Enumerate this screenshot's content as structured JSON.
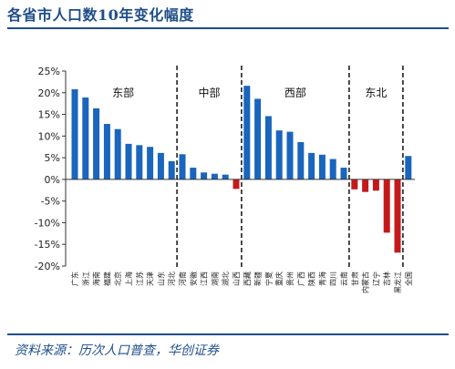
{
  "page": {
    "title": "各省市人口数10年变化幅度",
    "source": "资料来源：历次人口普查，华创证券"
  },
  "chart_data": {
    "type": "bar",
    "title": "各省市人口数10年变化幅度",
    "xlabel": "",
    "ylabel": "",
    "ylim": [
      -20,
      25
    ],
    "yticks": [
      -20,
      -15,
      -10,
      -5,
      0,
      5,
      10,
      15,
      20,
      25
    ],
    "ytick_format": "percent",
    "grid": false,
    "colors": {
      "positive": "#1a65bd",
      "negative": "#c4191b"
    },
    "categories": [
      "广东",
      "浙江",
      "海南",
      "福建",
      "北京",
      "上海",
      "江苏",
      "天津",
      "山东",
      "河北",
      "河南",
      "安徽",
      "江西",
      "湖南",
      "湖北",
      "山西",
      "西藏",
      "新疆",
      "宁夏",
      "重庆",
      "贵州",
      "广西",
      "陕西",
      "青海",
      "四川",
      "云南",
      "甘肃",
      "内蒙古",
      "辽宁",
      "吉林",
      "黑龙江",
      "全国"
    ],
    "values": [
      20.8,
      18.9,
      16.4,
      12.8,
      11.6,
      8.2,
      7.9,
      7.5,
      6.1,
      4.2,
      5.8,
      2.7,
      1.6,
      1.3,
      1.1,
      -2.2,
      21.6,
      18.6,
      14.6,
      11.3,
      11.0,
      8.6,
      6.1,
      5.7,
      4.7,
      2.7,
      -2.3,
      -2.9,
      -2.6,
      -12.3,
      -16.9,
      5.4
    ],
    "regions": [
      {
        "label": "东部",
        "start": 0,
        "end": 9
      },
      {
        "label": "中部",
        "start": 10,
        "end": 15
      },
      {
        "label": "西部",
        "start": 16,
        "end": 25
      },
      {
        "label": "东北",
        "start": 26,
        "end": 30
      }
    ],
    "separators_after": [
      9,
      15,
      25,
      30
    ]
  }
}
